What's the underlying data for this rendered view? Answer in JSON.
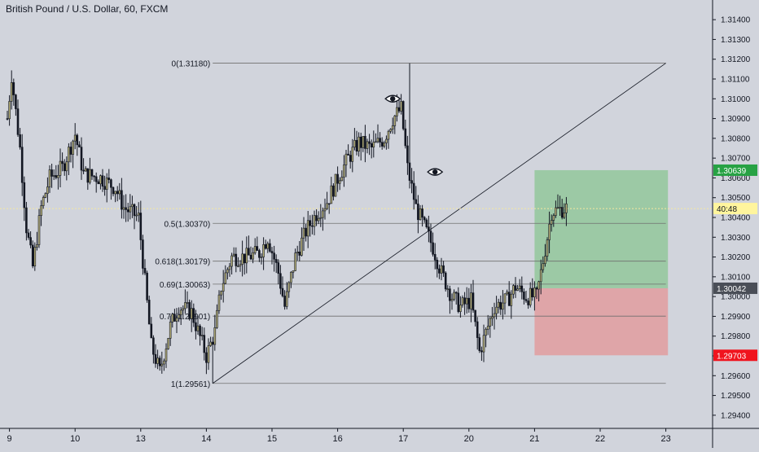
{
  "header": {
    "title": "British Pound / U.S. Dollar, 60, FXCM"
  },
  "colors": {
    "background": "#d1d4dc",
    "candle": "#131722",
    "bull_fill": "#b8b27a",
    "fib_line": "#6f6f6f",
    "profit_zone": "#8fc597",
    "loss_zone": "#e29c9f",
    "target_badge": "#27a244",
    "stop_badge": "#f0141e",
    "price_badge": "#4a4e57",
    "countdown_badge": "#fff59d",
    "last_price_line": "#f5e7a0"
  },
  "chart_data": {
    "type": "candlestick",
    "symbol": "British Pound / U.S. Dollar",
    "timeframe": "60",
    "source": "FXCM",
    "ylim": [
      1.2935,
      1.3145
    ],
    "y_ticks": [
      "1.31400",
      "1.31300",
      "1.31200",
      "1.31100",
      "1.31000",
      "1.30900",
      "1.30800",
      "1.30700",
      "1.30600",
      "1.30500",
      "1.30400",
      "1.30300",
      "1.30200",
      "1.30100",
      "1.30000",
      "1.29900",
      "1.29800",
      "1.29700",
      "1.29600",
      "1.29500",
      "1.29400"
    ],
    "x_ticks": [
      "9",
      "10",
      "13",
      "14",
      "15",
      "16",
      "17",
      "20",
      "21",
      "22",
      "23"
    ],
    "x_tick_index": [
      1,
      32,
      63,
      94,
      125,
      156,
      187,
      218,
      249,
      280,
      311
    ],
    "candles_visible": 265,
    "anchors": [
      [
        0,
        1.309
      ],
      [
        2,
        1.3112
      ],
      [
        6,
        1.3075
      ],
      [
        9,
        1.3035
      ],
      [
        12,
        1.3015
      ],
      [
        16,
        1.3045
      ],
      [
        20,
        1.306
      ],
      [
        26,
        1.3065
      ],
      [
        32,
        1.3082
      ],
      [
        36,
        1.3062
      ],
      [
        44,
        1.306
      ],
      [
        51,
        1.3055
      ],
      [
        55,
        1.3045
      ],
      [
        62,
        1.304
      ],
      [
        68,
        1.2975
      ],
      [
        72,
        1.2962
      ],
      [
        77,
        1.2985
      ],
      [
        81,
        1.2995
      ],
      [
        87,
        1.2992
      ],
      [
        94,
        1.297
      ],
      [
        98,
        1.2982
      ],
      [
        101,
        1.3005
      ],
      [
        106,
        1.302
      ],
      [
        113,
        1.302
      ],
      [
        119,
        1.3022
      ],
      [
        123,
        1.303
      ],
      [
        128,
        1.3012
      ],
      [
        131,
        1.2995
      ],
      [
        136,
        1.302
      ],
      [
        141,
        1.3033
      ],
      [
        146,
        1.3042
      ],
      [
        151,
        1.3048
      ],
      [
        157,
        1.3062
      ],
      [
        161,
        1.307
      ],
      [
        166,
        1.3078
      ],
      [
        172,
        1.3075
      ],
      [
        178,
        1.308
      ],
      [
        182,
        1.309
      ],
      [
        186,
        1.3095
      ],
      [
        189,
        1.3065
      ],
      [
        193,
        1.3045
      ],
      [
        197,
        1.3035
      ],
      [
        201,
        1.3025
      ],
      [
        205,
        1.3012
      ],
      [
        210,
        1.3
      ],
      [
        214,
        1.2995
      ],
      [
        219,
        1.2998
      ],
      [
        223,
        1.2972
      ],
      [
        227,
        1.2985
      ],
      [
        230,
        1.2995
      ],
      [
        236,
        1.2998
      ],
      [
        240,
        1.3005
      ],
      [
        245,
        1.3
      ],
      [
        250,
        1.3
      ],
      [
        255,
        1.303
      ],
      [
        257,
        1.3043
      ],
      [
        265,
        1.3045
      ]
    ],
    "pinned_extremes": {
      "high": {
        "index": 190,
        "value": 1.3118
      },
      "low": {
        "index": 97,
        "value": 1.29561
      }
    },
    "fibonacci": {
      "levels": [
        {
          "label": "0(1.31180)",
          "value": 1.3118
        },
        {
          "label": "0.5(1.30370)",
          "value": 1.3037
        },
        {
          "label": "0.618(1.30179)",
          "value": 1.30179
        },
        {
          "label": "0.69(1.30063)",
          "value": 1.30063
        },
        {
          "label": "0.79(1.29901)",
          "value": 1.29901
        },
        {
          "label": "1(1.29561)",
          "value": 1.29561
        }
      ],
      "start_index": 97,
      "end_index": 311
    },
    "trend_line": {
      "from": [
        97,
        1.29561
      ],
      "to": [
        311,
        1.3118
      ]
    },
    "position": {
      "entry": 1.30042,
      "target": 1.30639,
      "stop": 1.29703,
      "start_index": 249,
      "end_index": 312
    },
    "last_price": 1.30445,
    "countdown": "40:48",
    "price_badges": {
      "target": "1.30639",
      "entry": "1.30042",
      "stop": "1.29703"
    },
    "eye_markers": [
      {
        "index": 182,
        "value": 1.31
      },
      {
        "index": 202,
        "value": 1.3063
      }
    ]
  }
}
